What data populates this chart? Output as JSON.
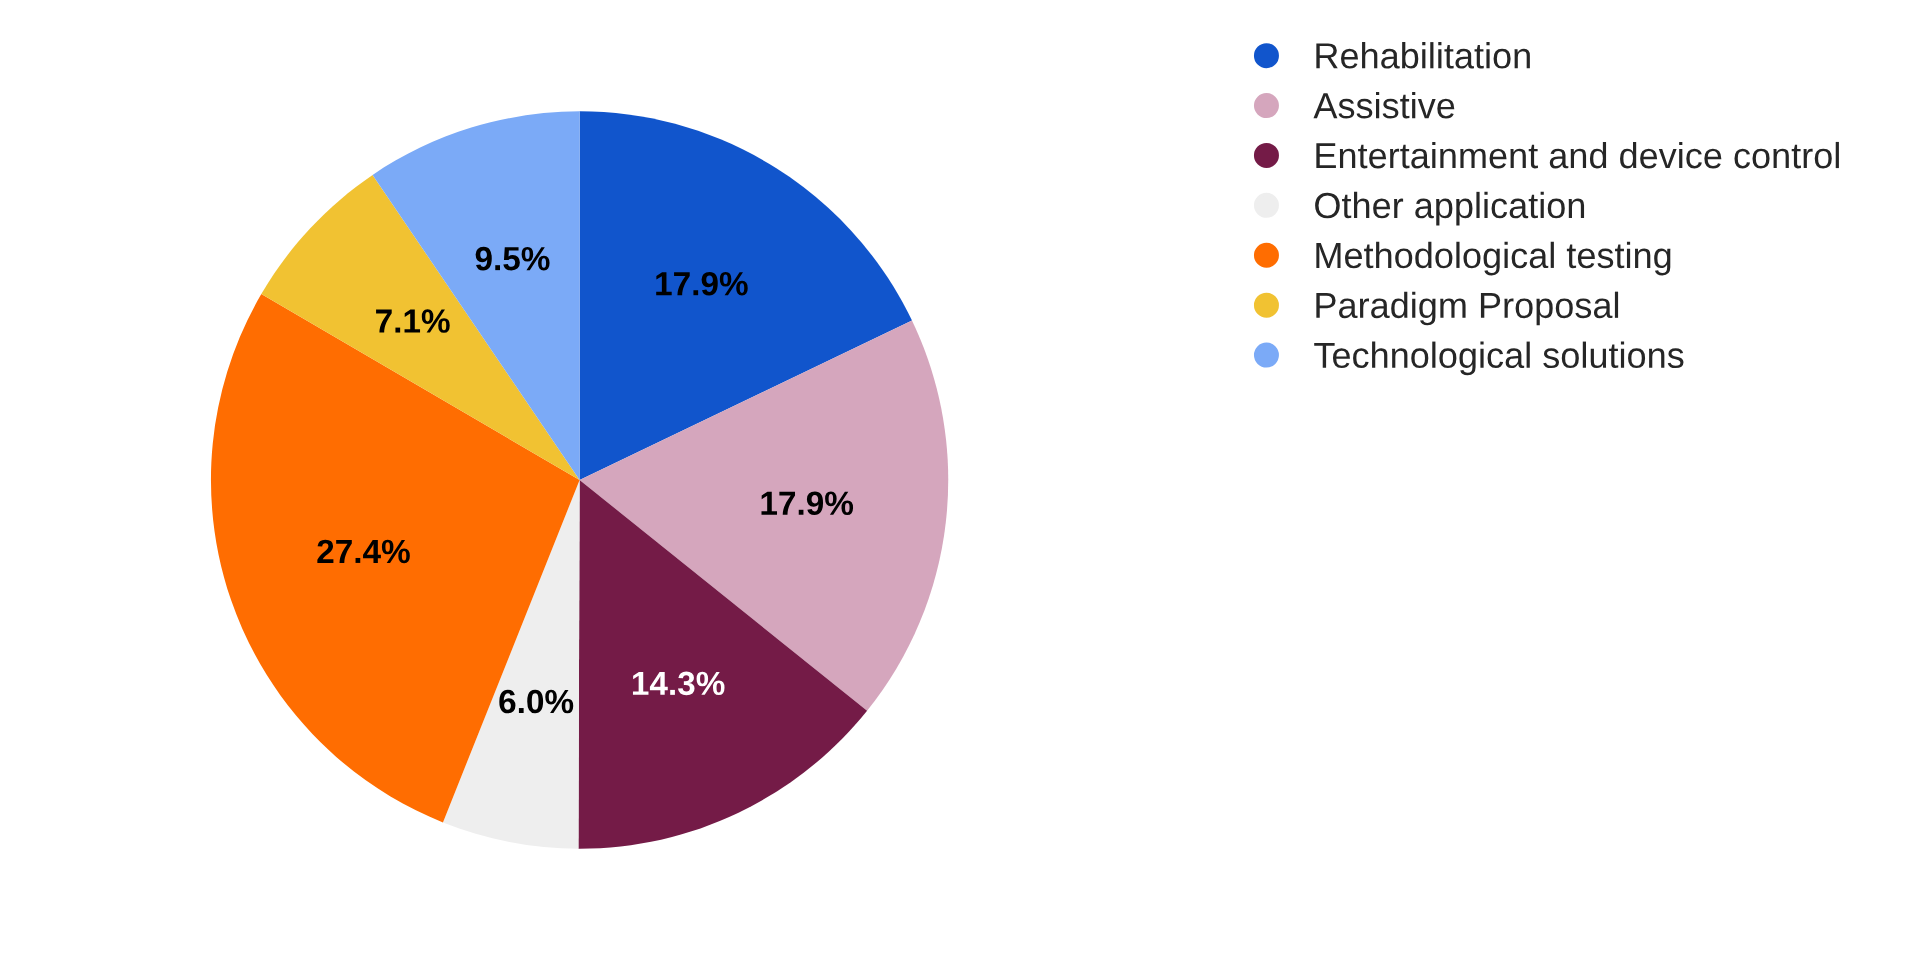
{
  "chart_data": {
    "type": "pie",
    "categories": [
      "Rehabilitation",
      "Assistive",
      "Entertainment and device control",
      "Other application",
      "Methodological testing",
      "Paradigm Proposal",
      "Technological solutions"
    ],
    "values": [
      17.9,
      17.9,
      14.3,
      6.0,
      27.4,
      7.1,
      9.5
    ],
    "colors": [
      "#1155cc",
      "#d5a6bd",
      "#741b47",
      "#eeeeee",
      "#ff6d01",
      "#f1c232",
      "#7baaf7"
    ],
    "value_labels": [
      "17.9%",
      "17.9%",
      "14.3%",
      "6.0%",
      "27.4%",
      "7.1%",
      "9.5%"
    ],
    "legend": "top right"
  }
}
